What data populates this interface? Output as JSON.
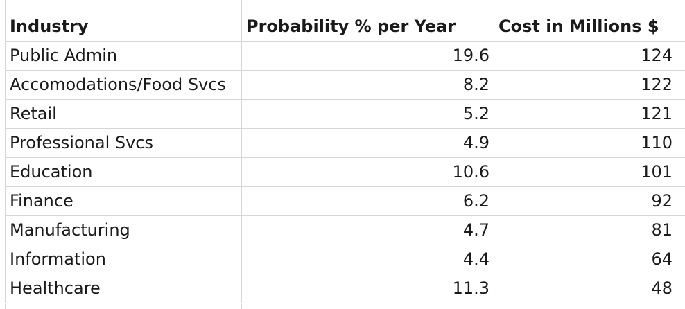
{
  "table": {
    "headers": {
      "industry": "Industry",
      "probability": "Probability % per Year",
      "cost": "Cost in Millions $"
    },
    "rows": [
      {
        "industry": "Public Admin",
        "probability": "19.6",
        "cost": "124"
      },
      {
        "industry": "Accomodations/Food Svcs",
        "probability": "8.2",
        "cost": "122"
      },
      {
        "industry": "Retail",
        "probability": "5.2",
        "cost": "121"
      },
      {
        "industry": "Professional Svcs",
        "probability": "4.9",
        "cost": "110"
      },
      {
        "industry": "Education",
        "probability": "10.6",
        "cost": "101"
      },
      {
        "industry": "Finance",
        "probability": "6.2",
        "cost": "92"
      },
      {
        "industry": "Manufacturing",
        "probability": "4.7",
        "cost": "81"
      },
      {
        "industry": "Information",
        "probability": "4.4",
        "cost": "64"
      },
      {
        "industry": "Healthcare",
        "probability": "11.3",
        "cost": "48"
      }
    ]
  }
}
